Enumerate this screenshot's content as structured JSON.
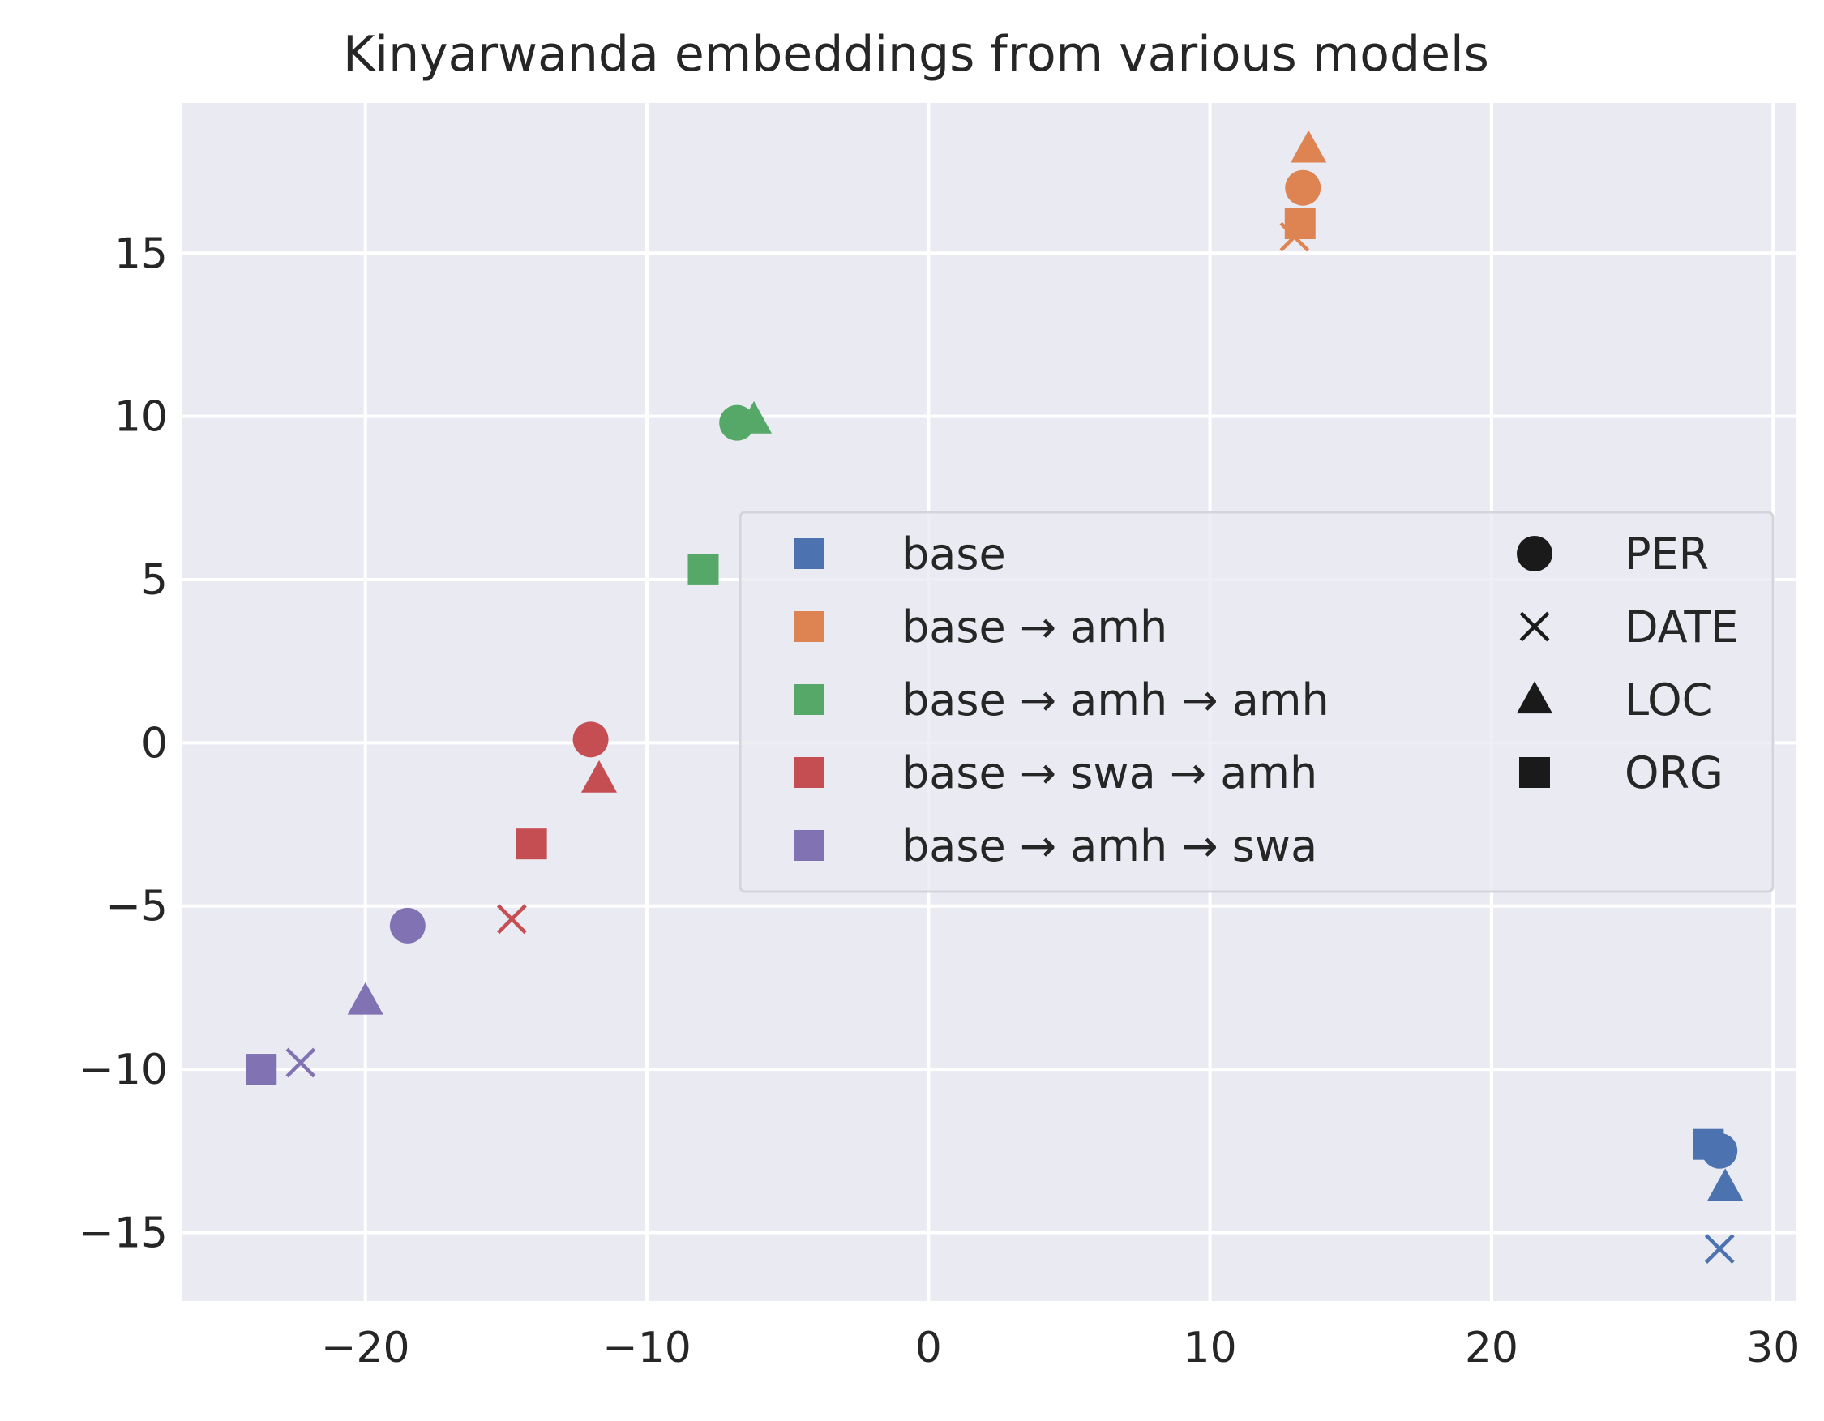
{
  "chart_data": {
    "type": "scatter",
    "title": "Kinyarwanda embeddings from various models",
    "xlabel": "",
    "ylabel": "",
    "xlim": [
      -26.5,
      30.8
    ],
    "ylim": [
      -17.1,
      19.6
    ],
    "xticks": [
      -20,
      -10,
      0,
      10,
      20,
      30
    ],
    "yticks": [
      -15,
      -10,
      -5,
      0,
      5,
      10,
      15
    ],
    "xtick_labels": [
      "−20",
      "−10",
      "0",
      "10",
      "20",
      "30"
    ],
    "ytick_labels": [
      "−15",
      "−10",
      "−5",
      "0",
      "5",
      "10",
      "15"
    ],
    "grid": true,
    "background": "#eaeaf2",
    "legend_position": "center-right",
    "series": [
      {
        "name": "base",
        "color": "#4c72b0",
        "points": [
          {
            "x": 28.1,
            "y": -12.5,
            "label": "PER"
          },
          {
            "x": 28.1,
            "y": -15.5,
            "label": "DATE"
          },
          {
            "x": 28.3,
            "y": -13.6,
            "label": "LOC"
          },
          {
            "x": 27.7,
            "y": -12.3,
            "label": "ORG"
          }
        ]
      },
      {
        "name": "base → amh",
        "color": "#dd8452",
        "points": [
          {
            "x": 13.3,
            "y": 17.0,
            "label": "PER"
          },
          {
            "x": 13.0,
            "y": 15.5,
            "label": "DATE"
          },
          {
            "x": 13.5,
            "y": 18.2,
            "label": "LOC"
          },
          {
            "x": 13.2,
            "y": 15.9,
            "label": "ORG"
          }
        ]
      },
      {
        "name": "base → amh → amh",
        "color": "#55a868",
        "points": [
          {
            "x": -6.8,
            "y": 9.8,
            "label": "PER"
          },
          {
            "x": -6.2,
            "y": 9.9,
            "label": "LOC"
          },
          {
            "x": -8.0,
            "y": 5.3,
            "label": "ORG"
          }
        ]
      },
      {
        "name": "base → swa → amh",
        "color": "#c44e52",
        "points": [
          {
            "x": -12.0,
            "y": 0.1,
            "label": "PER"
          },
          {
            "x": -14.8,
            "y": -5.4,
            "label": "DATE"
          },
          {
            "x": -11.7,
            "y": -1.1,
            "label": "LOC"
          },
          {
            "x": -14.1,
            "y": -3.1,
            "label": "ORG"
          }
        ]
      },
      {
        "name": "base → amh → swa",
        "color": "#8172b3",
        "points": [
          {
            "x": -18.5,
            "y": -5.6,
            "label": "PER"
          },
          {
            "x": -22.3,
            "y": -9.8,
            "label": "DATE"
          },
          {
            "x": -20.0,
            "y": -7.9,
            "label": "LOC"
          },
          {
            "x": -23.7,
            "y": -10.0,
            "label": "ORG"
          }
        ]
      }
    ],
    "marker_legend": [
      {
        "label": "PER",
        "marker": "circle"
      },
      {
        "label": "DATE",
        "marker": "x"
      },
      {
        "label": "LOC",
        "marker": "triangle"
      },
      {
        "label": "ORG",
        "marker": "square"
      }
    ]
  }
}
